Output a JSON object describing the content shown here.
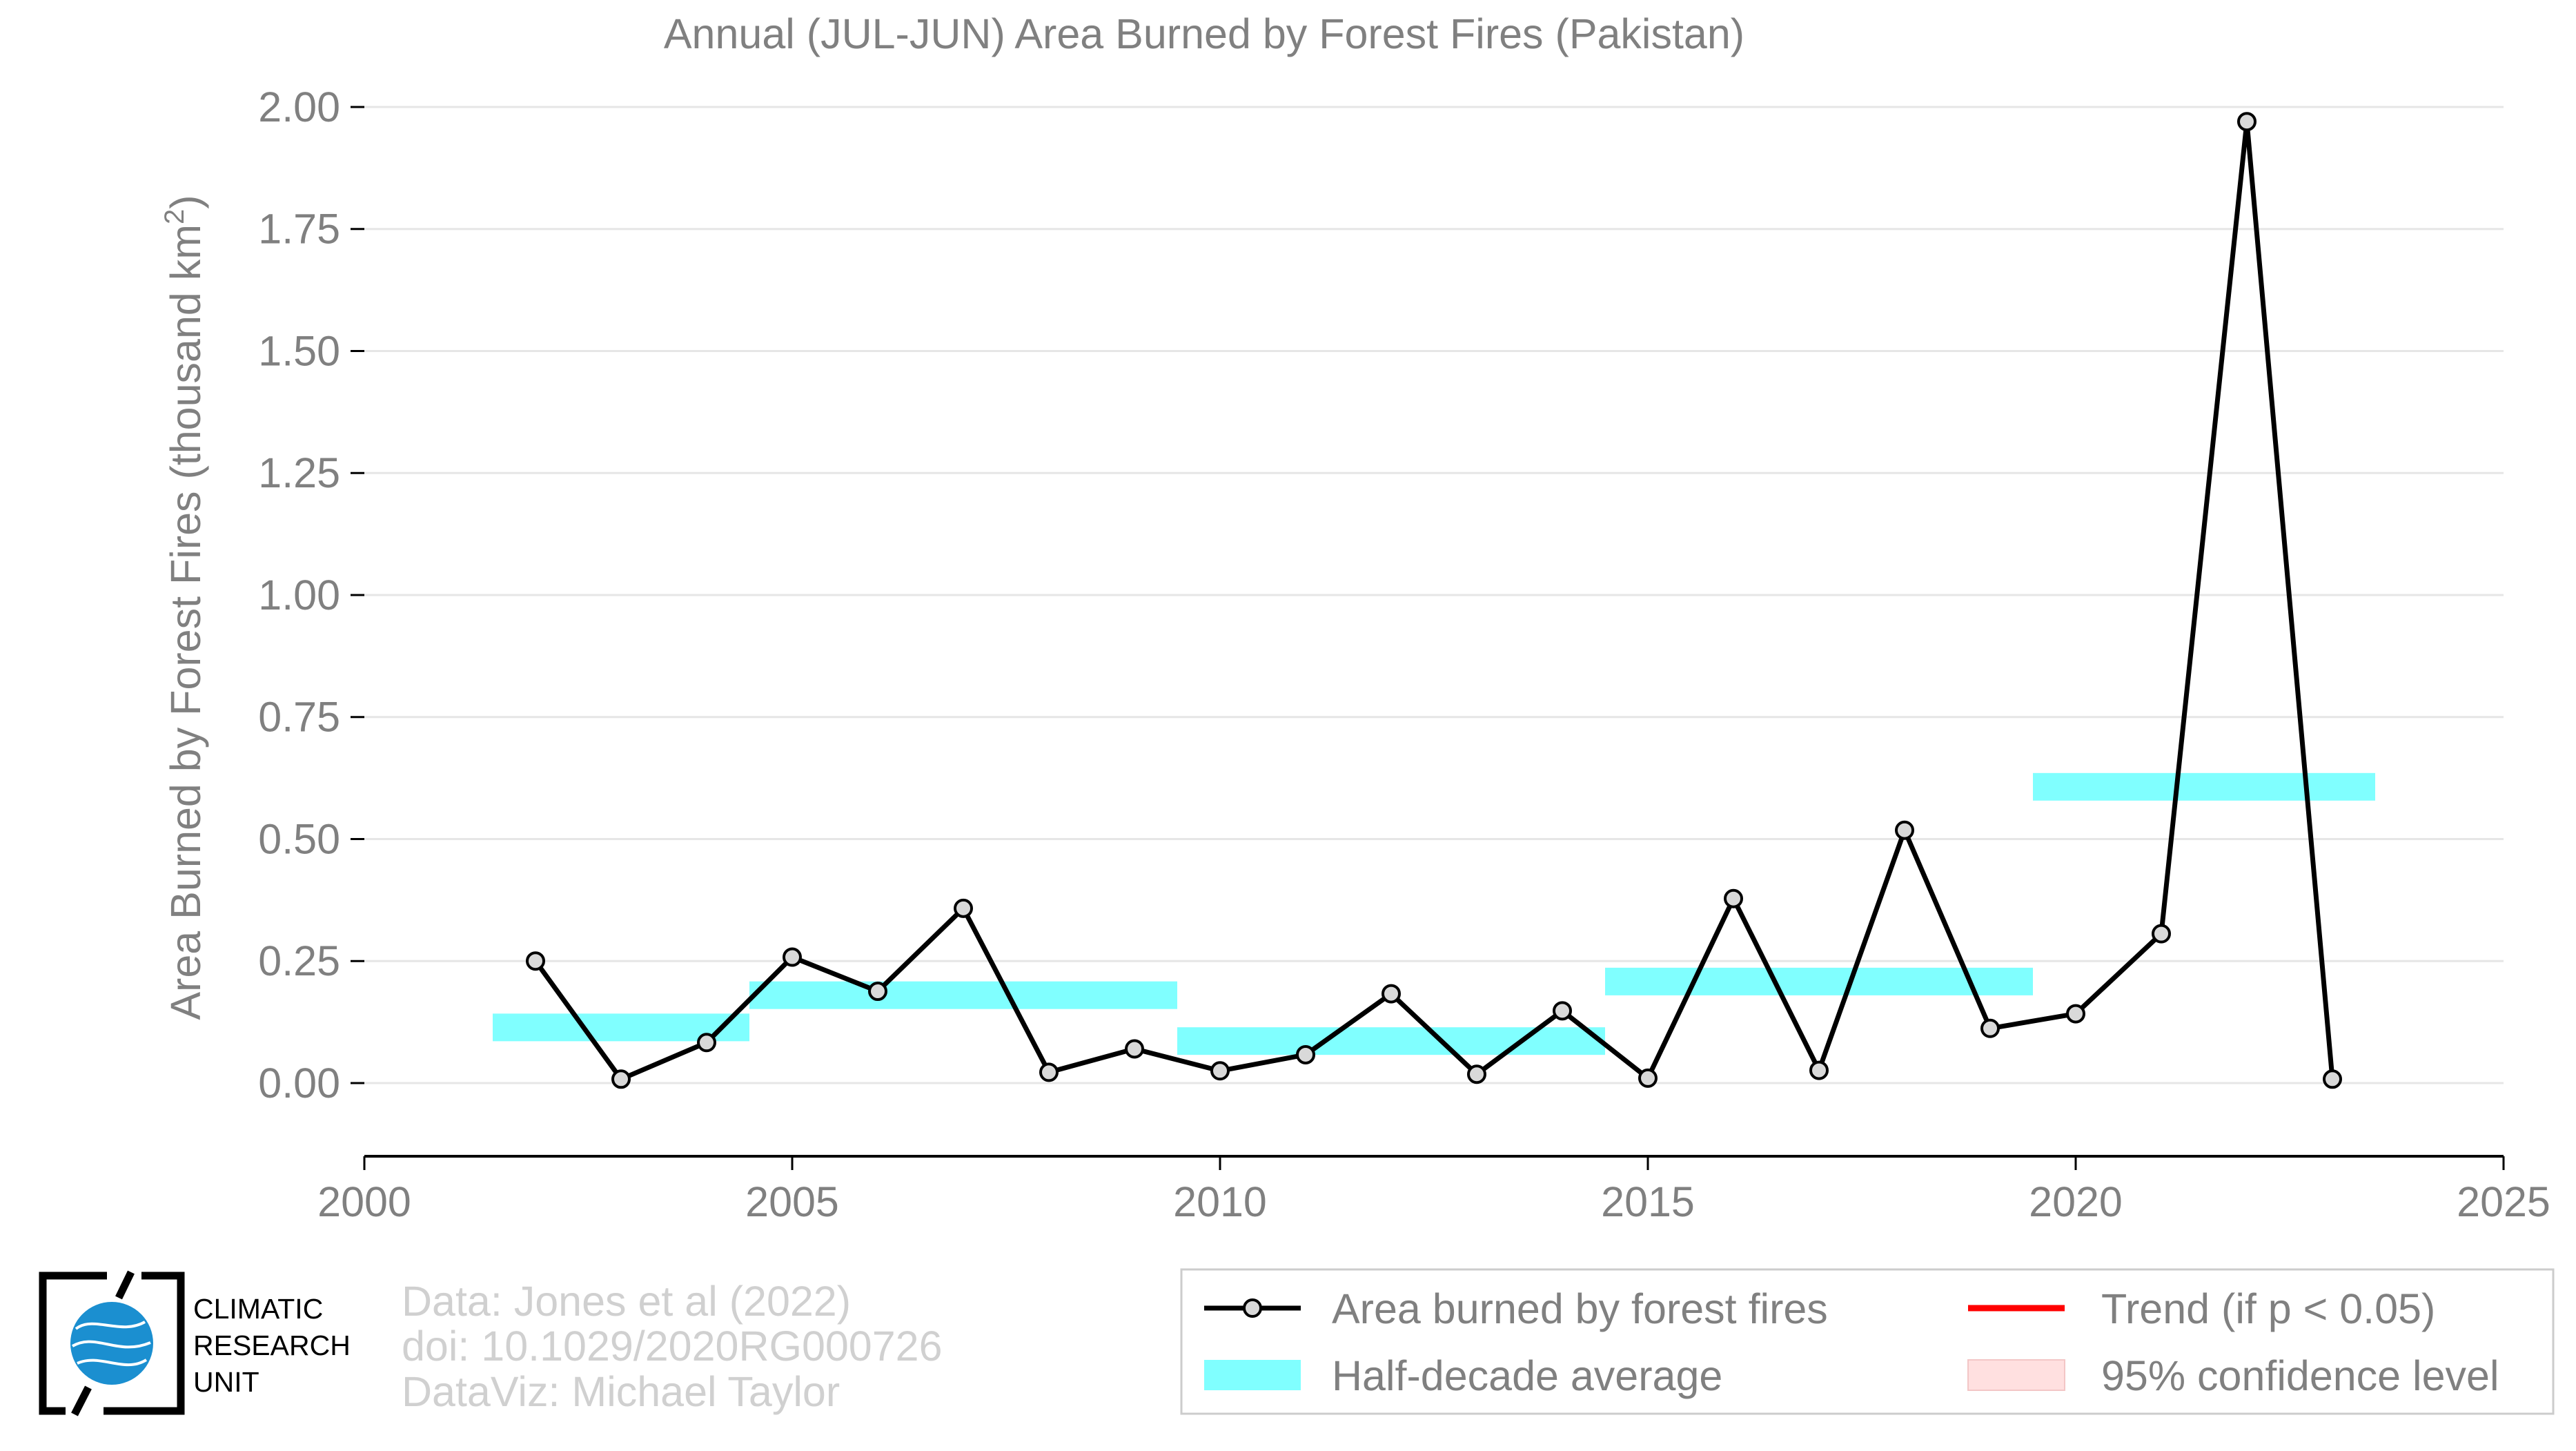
{
  "chart_data": {
    "type": "line",
    "title": "Annual (JUL-JUN) Area Burned by Forest Fires (Pakistan)",
    "xlabel": "",
    "ylabel": "Area Burned by Forest Fires (thousand km²)",
    "ylabel_main": "Area Burned by Forest Fires (thousand km",
    "ylabel_sup": "2",
    "ylabel_end": ")",
    "xlim": [
      2000,
      2025
    ],
    "ylim": [
      -0.15,
      2.0
    ],
    "x_ticks": [
      "2000",
      "2005",
      "2010",
      "2015",
      "2020",
      "2025"
    ],
    "x_tick_values": [
      2000,
      2005,
      2010,
      2015,
      2020,
      2025
    ],
    "y_ticks": [
      "0.00",
      "0.25",
      "0.50",
      "0.75",
      "1.00",
      "1.25",
      "1.50",
      "1.75",
      "2.00"
    ],
    "y_tick_values": [
      0,
      0.25,
      0.5,
      0.75,
      1.0,
      1.25,
      1.5,
      1.75,
      2.0
    ],
    "grid": true,
    "legend_position": "bottom-right",
    "series": [
      {
        "name": "Area burned by forest fires",
        "color": "#000000",
        "x": [
          2002,
          2003,
          2004,
          2005,
          2006,
          2007,
          2008,
          2009,
          2010,
          2011,
          2012,
          2013,
          2014,
          2015,
          2016,
          2017,
          2018,
          2019,
          2020,
          2021,
          2022,
          2023
        ],
        "y": [
          0.25,
          0.008,
          0.083,
          0.258,
          0.188,
          0.358,
          0.022,
          0.07,
          0.025,
          0.058,
          0.183,
          0.018,
          0.148,
          0.01,
          0.378,
          0.026,
          0.518,
          0.112,
          0.142,
          0.306,
          1.97,
          0.008
        ]
      },
      {
        "name": "Half-decade average",
        "color": "#80ffff",
        "type": "bands",
        "bands": [
          {
            "x0": 2001.5,
            "x1": 2004.5,
            "y": 0.114
          },
          {
            "x0": 2004.5,
            "x1": 2009.5,
            "y": 0.18
          },
          {
            "x0": 2009.5,
            "x1": 2014.5,
            "y": 0.086
          },
          {
            "x0": 2014.5,
            "x1": 2019.5,
            "y": 0.208
          },
          {
            "x0": 2019.5,
            "x1": 2023.5,
            "y": 0.607
          }
        ]
      },
      {
        "name": "Trend (if p < 0.05)",
        "color": "#ff0000",
        "values": []
      },
      {
        "name": "95% confidence level",
        "color": "#ffe0e0",
        "values": []
      }
    ],
    "legend": [
      {
        "label": "Area burned by forest fires",
        "kind": "line-marker",
        "color": "#000000"
      },
      {
        "label": "Trend (if p < 0.05)",
        "kind": "line",
        "color": "#ff0000"
      },
      {
        "label": "Half-decade average",
        "kind": "band",
        "color": "#80ffff"
      },
      {
        "label": "95% confidence level",
        "kind": "fill",
        "color": "#ffe0e0"
      }
    ]
  },
  "credits": {
    "line1": "Data: Jones et al (2022)",
    "line2": "doi: 10.1029/2020RG000726",
    "line3": "DataViz: Michael Taylor"
  },
  "logo": {
    "name": "climatic-research-unit-logo",
    "line1": "CLIMATIC",
    "line2": "RESEARCH",
    "line3": "UNIT",
    "color": "#1b8fd0"
  },
  "colors": {
    "text": "#808080",
    "grid": "#e6e6e6",
    "axis": "#000000",
    "marker_fill": "#d9d9d9"
  }
}
